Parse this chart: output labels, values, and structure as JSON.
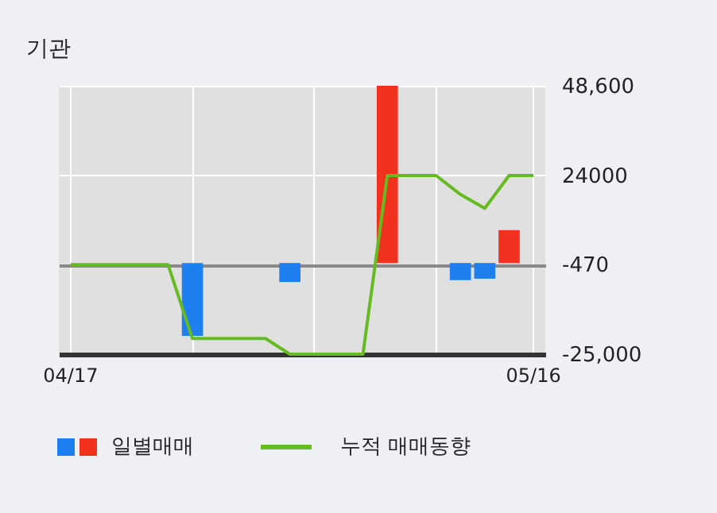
{
  "chart_data": {
    "type": "bar",
    "title": "기관",
    "categories": [
      "04/17",
      null,
      null,
      null,
      null,
      null,
      null,
      null,
      null,
      null,
      null,
      null,
      null,
      null,
      null,
      null,
      null,
      null,
      null,
      "05/16"
    ],
    "series": [
      {
        "name": "일별매매",
        "values": [
          null,
          null,
          null,
          null,
          null,
          -20000,
          null,
          null,
          null,
          -5200,
          null,
          null,
          null,
          48600,
          null,
          null,
          -4700,
          -4300,
          9000,
          null
        ],
        "colors": [
          "#f0321e",
          "#f0321e",
          "#f0321e",
          "#f0321e",
          "#f0321e",
          "#1e7ff0",
          "#f0321e",
          "#f0321e",
          "#f0321e",
          "#1e7ff0",
          "#f0321e",
          "#f0321e",
          "#f0321e",
          "#f0321e",
          "#f0321e",
          "#f0321e",
          "#1e7ff0",
          "#1e7ff0",
          "#f0321e",
          "#f0321e"
        ]
      },
      {
        "name": "누적 매매동향",
        "type": "line",
        "color": "#66bb22",
        "values": [
          -470,
          -470,
          -470,
          -470,
          -470,
          -20700,
          -20700,
          -20700,
          -20700,
          -25000,
          -25000,
          -25000,
          -25000,
          24000,
          24000,
          24000,
          18800,
          15000,
          24000,
          24000
        ]
      }
    ],
    "ylim": [
      -25000,
      48600
    ],
    "yticks": [
      {
        "value": 48600,
        "label": "48,600"
      },
      24000,
      -470,
      {
        "value": -25000,
        "label": "-25,000"
      }
    ],
    "grid": true,
    "legend": "bottom"
  }
}
